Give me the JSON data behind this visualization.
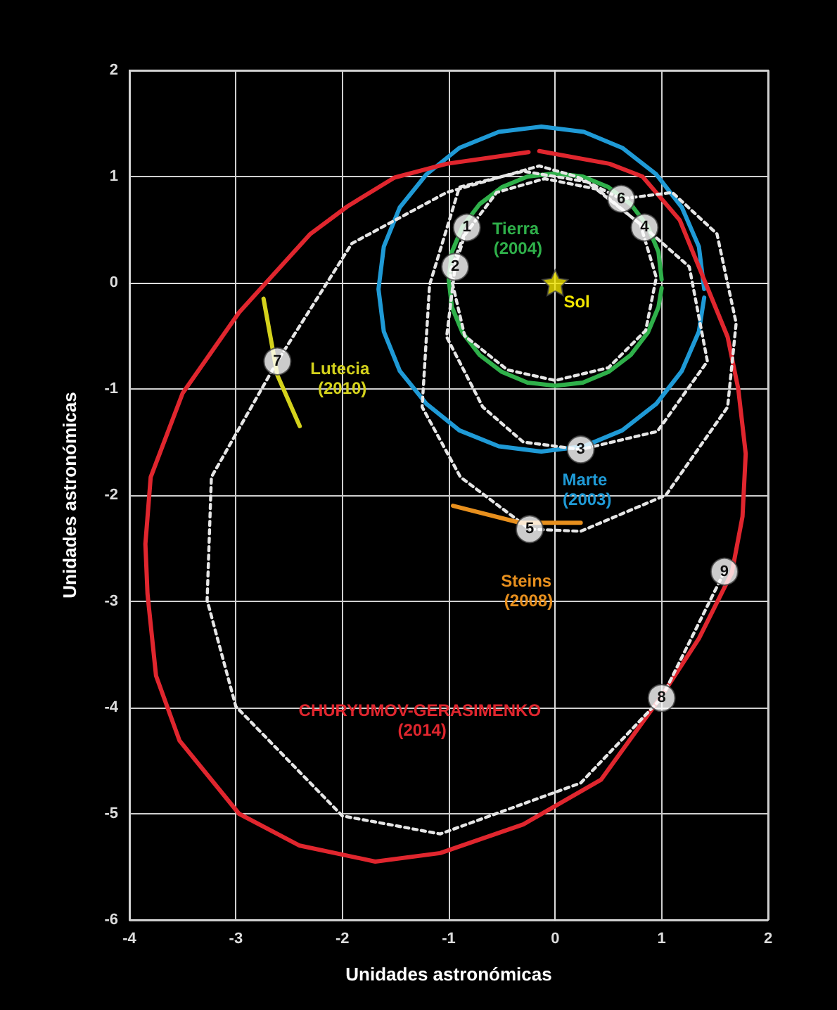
{
  "chart_data": {
    "type": "line",
    "xlabel": "Unidades astronómicas",
    "ylabel": "Unidades astronómicas",
    "xlim": [
      -4,
      2
    ],
    "xticks": [
      -4,
      -3,
      -2,
      -1,
      0,
      1,
      2
    ],
    "ylim": [
      -6,
      2
    ],
    "yticks": [
      -6,
      -5,
      -4,
      -3,
      -2,
      -1,
      0,
      1,
      2
    ],
    "grid": true,
    "series": [
      {
        "name": "Tierra (2004)",
        "marker": "none",
        "line_style": "solid",
        "color": "#2fb04a",
        "x": [
          1,
          0.97,
          0.87,
          0.71,
          0.5,
          0.26,
          0,
          -0.26,
          -0.5,
          -0.71,
          -0.87,
          -0.97,
          -1,
          -0.97,
          -0.87,
          -0.71,
          -0.5,
          -0.26,
          0,
          0.26,
          0.5,
          0.71,
          0.87,
          0.97,
          1
        ],
        "values": [
          0.03,
          0.29,
          0.53,
          0.74,
          0.9,
          1,
          1.03,
          1,
          0.9,
          0.74,
          0.53,
          0.29,
          0.03,
          -0.23,
          -0.47,
          -0.68,
          -0.84,
          -0.94,
          -0.97,
          -0.94,
          -0.84,
          -0.68,
          -0.47,
          -0.23,
          -0.05
        ]
      },
      {
        "name": "Marte (2003)",
        "marker": "none",
        "line_style": "solid",
        "color": "#1f9ad6",
        "x": [
          1.4,
          1.35,
          1.19,
          0.95,
          0.63,
          0.27,
          -0.13,
          -0.53,
          -0.9,
          -1.21,
          -1.46,
          -1.61,
          -1.66,
          -1.61,
          -1.46,
          -1.21,
          -0.9,
          -0.53,
          -0.13,
          0.27,
          0.63,
          0.95,
          1.19,
          1.35,
          1.4
        ],
        "values": [
          -0.06,
          0.34,
          0.71,
          1.02,
          1.27,
          1.42,
          1.47,
          1.42,
          1.27,
          1.02,
          0.71,
          0.34,
          -0.06,
          -0.46,
          -0.83,
          -1.14,
          -1.39,
          -1.54,
          -1.59,
          -1.54,
          -1.39,
          -1.14,
          -0.83,
          -0.46,
          -0.14
        ]
      },
      {
        "name": "CHURYUMOV-GERASIMENKO (2014)",
        "marker": "none",
        "line_style": "solid",
        "color": "#e0262e",
        "x": [
          -0.15,
          0.51,
          0.82,
          1.17,
          1.35,
          1.62,
          1.72,
          1.79,
          1.76,
          1.66,
          1.35,
          1.0,
          0.43,
          -0.3,
          -1.08,
          -1.69,
          -2.4,
          -2.97,
          -3.53,
          -3.75,
          -3.83,
          -3.85,
          -3.8,
          -3.5,
          -2.97,
          -2.3,
          -1.95,
          -1.51,
          -1.02,
          -0.25
        ],
        "values": [
          1.24,
          1.12,
          1.0,
          0.59,
          0.15,
          -0.51,
          -1.0,
          -1.61,
          -2.2,
          -2.73,
          -3.35,
          -3.89,
          -4.68,
          -5.1,
          -5.37,
          -5.45,
          -5.3,
          -5.0,
          -4.31,
          -3.7,
          -2.93,
          -2.46,
          -1.83,
          -1.04,
          -0.28,
          0.46,
          0.72,
          0.99,
          1.12,
          1.23
        ]
      },
      {
        "marker": "none",
        "line_style": "dotted",
        "color": "#e6e6e6",
        "x": [
          -0.83,
          -0.99,
          -0.85,
          -0.45,
          0,
          0.5,
          0.85,
          0.95,
          0.8,
          0.4,
          -0.1,
          -0.55,
          -0.85,
          -0.94,
          -1.02,
          -0.68,
          -0.3,
          0.24,
          0.96,
          1.43,
          1.26,
          0.84,
          0.3,
          -0.3,
          -0.9,
          -1.18,
          -1.25,
          -0.89,
          -0.24,
          0.24,
          1.04,
          1.62,
          1.7,
          1.52,
          1.1,
          0.62,
          0.2,
          -0.15,
          -1.02,
          -1.91,
          -2.61,
          -3.23,
          -3.27,
          -3.0,
          -2.0,
          -1.08,
          0.24,
          1.0,
          1.59
        ],
        "values": [
          0.52,
          0.1,
          -0.5,
          -0.82,
          -0.92,
          -0.8,
          -0.45,
          0.05,
          0.55,
          0.88,
          0.98,
          0.85,
          0.45,
          0.15,
          -0.51,
          -1.17,
          -1.5,
          -1.57,
          -1.4,
          -0.74,
          0.15,
          0.52,
          0.95,
          1.05,
          0.9,
          -0.02,
          -1.17,
          -1.83,
          -2.32,
          -2.34,
          -2.0,
          -1.17,
          -0.38,
          0.46,
          0.85,
          0.79,
          1.0,
          1.1,
          0.85,
          0.37,
          -0.74,
          -1.83,
          -2.99,
          -3.99,
          -5.02,
          -5.19,
          -4.71,
          -3.91,
          -2.72
        ]
      },
      {
        "name": "Lutecia (2010)",
        "marker": "none",
        "line_style": "solid",
        "color": "#d4d21c",
        "x": [
          -2.74,
          -2.61,
          -2.4
        ],
        "values": [
          -0.15,
          -0.87,
          -1.35
        ]
      },
      {
        "name": "Steins (2008)",
        "marker": "none",
        "line_style": "solid",
        "color": "#e8901e",
        "x": [
          -0.96,
          -0.33,
          0.24
        ],
        "values": [
          -2.1,
          -2.26,
          -2.26
        ]
      },
      {
        "name": "Sol",
        "type": "scatter",
        "marker": "star",
        "color": "#f2e600",
        "x": [
          0
        ],
        "values": [
          0
        ]
      },
      {
        "type": "scatter",
        "marker": "circle",
        "color": "#ffffff",
        "x": [
          -0.83,
          -0.94,
          0.24,
          0.84,
          -0.24,
          0.62,
          -2.61,
          1.0,
          1.59
        ],
        "values": [
          0.52,
          0.15,
          -1.57,
          0.52,
          -2.32,
          0.79,
          -0.74,
          -3.91,
          -2.72
        ]
      }
    ],
    "annotations": [
      {
        "text": "1",
        "x": -0.83,
        "y": 0.52
      },
      {
        "text": "2",
        "x": -0.94,
        "y": 0.15
      },
      {
        "text": "3",
        "x": 0.24,
        "y": -1.57
      },
      {
        "text": "4",
        "x": 0.84,
        "y": 0.52
      },
      {
        "text": "5",
        "x": -0.24,
        "y": -2.32
      },
      {
        "text": "6",
        "x": 0.62,
        "y": 0.79
      },
      {
        "text": "7",
        "x": -2.61,
        "y": -0.74
      },
      {
        "text": "8",
        "x": 1.0,
        "y": -3.91
      },
      {
        "text": "9",
        "x": 1.59,
        "y": -2.72
      }
    ]
  }
}
